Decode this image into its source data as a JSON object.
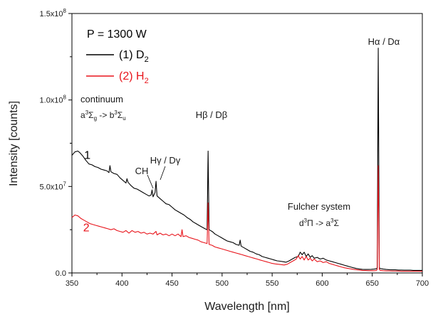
{
  "chart_data": {
    "type": "line",
    "xlabel": "Wavelength [nm]",
    "ylabel": "Intensity [counts]",
    "xlim": [
      350,
      700
    ],
    "ylim": [
      0,
      150000000
    ],
    "x_ticks": [
      350,
      400,
      450,
      500,
      550,
      600,
      650,
      700
    ],
    "x_tick_labels": [
      "350",
      "400",
      "450",
      "500",
      "550",
      "600",
      "650",
      "700"
    ],
    "y_ticks": [
      0,
      50000000,
      100000000,
      150000000
    ],
    "y_tick_labels": [
      {
        "mantissa": "0.0",
        "exp": ""
      },
      {
        "mantissa": "5.0x10",
        "exp": "7"
      },
      {
        "mantissa": "1.0x10",
        "exp": "8"
      },
      {
        "mantissa": "1.5x10",
        "exp": "8"
      }
    ],
    "legend": {
      "placement": "top-left",
      "header": "P = 1300 W",
      "entries": [
        {
          "prefix": "(1) D",
          "sub": "2",
          "color": "#000000"
        },
        {
          "prefix": "(2) H",
          "sub": "2",
          "color": "#e8141b"
        }
      ]
    },
    "series": [
      {
        "name": "(1) D2",
        "color": "#000000",
        "label": "1",
        "label_xy": [
          353,
          66000000
        ],
        "points": [
          [
            350,
            68000000
          ],
          [
            353,
            70000000
          ],
          [
            356,
            70500000
          ],
          [
            358,
            69500000
          ],
          [
            361,
            67500000
          ],
          [
            364,
            65000000
          ],
          [
            367,
            63000000
          ],
          [
            370,
            62500000
          ],
          [
            373,
            61500000
          ],
          [
            376,
            61000000
          ],
          [
            379,
            60000000
          ],
          [
            382,
            59500000
          ],
          [
            385,
            59000000
          ],
          [
            387,
            58000000
          ],
          [
            388,
            62000000
          ],
          [
            389,
            58500000
          ],
          [
            392,
            57500000
          ],
          [
            395,
            57000000
          ],
          [
            398,
            55000000
          ],
          [
            401,
            53500000
          ],
          [
            404,
            52000000
          ],
          [
            405,
            54500000
          ],
          [
            406,
            52500000
          ],
          [
            409,
            50500000
          ],
          [
            412,
            49000000
          ],
          [
            415,
            48500000
          ],
          [
            418,
            47500000
          ],
          [
            421,
            46500000
          ],
          [
            424,
            45500000
          ],
          [
            427,
            44500000
          ],
          [
            429,
            45000000
          ],
          [
            430,
            48000000
          ],
          [
            431,
            44000000
          ],
          [
            433,
            46500000
          ],
          [
            434,
            53000000
          ],
          [
            435,
            44500000
          ],
          [
            438,
            43000000
          ],
          [
            441,
            41500000
          ],
          [
            444,
            40000000
          ],
          [
            447,
            39500000
          ],
          [
            450,
            38000000
          ],
          [
            453,
            36500000
          ],
          [
            456,
            35500000
          ],
          [
            459,
            34500000
          ],
          [
            462,
            33500000
          ],
          [
            465,
            32000000
          ],
          [
            468,
            31000000
          ],
          [
            471,
            29500000
          ],
          [
            474,
            28500000
          ],
          [
            477,
            27500000
          ],
          [
            480,
            26500000
          ],
          [
            483,
            25500000
          ],
          [
            485,
            25000000
          ],
          [
            486,
            70500000
          ],
          [
            487,
            25000000
          ],
          [
            490,
            24000000
          ],
          [
            493,
            22500000
          ],
          [
            496,
            21500000
          ],
          [
            499,
            20500000
          ],
          [
            502,
            19500000
          ],
          [
            505,
            18500000
          ],
          [
            508,
            18000000
          ],
          [
            511,
            17500000
          ],
          [
            514,
            16500000
          ],
          [
            517,
            16000000
          ],
          [
            518,
            19000000
          ],
          [
            519,
            15500000
          ],
          [
            522,
            14500000
          ],
          [
            525,
            13500000
          ],
          [
            528,
            12500000
          ],
          [
            531,
            12000000
          ],
          [
            534,
            11000000
          ],
          [
            537,
            10500000
          ],
          [
            540,
            9500000
          ],
          [
            543,
            9000000
          ],
          [
            546,
            8500000
          ],
          [
            549,
            8000000
          ],
          [
            552,
            7500000
          ],
          [
            555,
            7000000
          ],
          [
            558,
            6800000
          ],
          [
            561,
            6500000
          ],
          [
            564,
            6200000
          ],
          [
            567,
            7000000
          ],
          [
            570,
            8000000
          ],
          [
            573,
            9000000
          ],
          [
            576,
            9500000
          ],
          [
            578,
            12000000
          ],
          [
            580,
            10500000
          ],
          [
            582,
            12000000
          ],
          [
            584,
            9500000
          ],
          [
            586,
            11000000
          ],
          [
            588,
            9000000
          ],
          [
            590,
            10000000
          ],
          [
            592,
            8500000
          ],
          [
            595,
            9000000
          ],
          [
            598,
            8000000
          ],
          [
            601,
            8500000
          ],
          [
            604,
            7500000
          ],
          [
            607,
            7000000
          ],
          [
            610,
            6500000
          ],
          [
            613,
            6000000
          ],
          [
            616,
            5500000
          ],
          [
            619,
            5000000
          ],
          [
            622,
            4500000
          ],
          [
            625,
            4000000
          ],
          [
            628,
            3500000
          ],
          [
            631,
            3000000
          ],
          [
            634,
            2600000
          ],
          [
            637,
            2300000
          ],
          [
            640,
            2100000
          ],
          [
            643,
            2000000
          ],
          [
            646,
            2000000
          ],
          [
            649,
            2100000
          ],
          [
            652,
            2200000
          ],
          [
            654,
            2400000
          ],
          [
            655,
            3000000
          ],
          [
            656,
            130000000
          ],
          [
            657,
            3000000
          ],
          [
            658,
            2500000
          ],
          [
            661,
            2200000
          ],
          [
            664,
            2000000
          ],
          [
            667,
            1900000
          ],
          [
            670,
            1800000
          ],
          [
            673,
            1800000
          ],
          [
            676,
            1700000
          ],
          [
            679,
            1700000
          ],
          [
            682,
            1600000
          ],
          [
            685,
            1600000
          ],
          [
            688,
            1600000
          ],
          [
            691,
            1500000
          ],
          [
            694,
            1500000
          ],
          [
            697,
            1500000
          ],
          [
            700,
            1500000
          ]
        ]
      },
      {
        "name": "(2) H2",
        "color": "#e8141b",
        "label": "2",
        "label_xy": [
          352,
          24000000
        ],
        "points": [
          [
            350,
            32000000
          ],
          [
            353,
            33500000
          ],
          [
            356,
            33000000
          ],
          [
            359,
            31500000
          ],
          [
            362,
            30500000
          ],
          [
            365,
            29500000
          ],
          [
            368,
            28500000
          ],
          [
            371,
            28000000
          ],
          [
            374,
            27500000
          ],
          [
            377,
            27000000
          ],
          [
            380,
            26500000
          ],
          [
            383,
            26000000
          ],
          [
            386,
            25500000
          ],
          [
            389,
            25000000
          ],
          [
            392,
            25500000
          ],
          [
            395,
            24500000
          ],
          [
            398,
            24000000
          ],
          [
            401,
            23500000
          ],
          [
            404,
            24500000
          ],
          [
            407,
            23000000
          ],
          [
            410,
            24500000
          ],
          [
            413,
            23500000
          ],
          [
            416,
            24000000
          ],
          [
            419,
            23000000
          ],
          [
            422,
            23500000
          ],
          [
            425,
            22500000
          ],
          [
            428,
            23000000
          ],
          [
            431,
            22500000
          ],
          [
            434,
            24000000
          ],
          [
            435,
            22000000
          ],
          [
            438,
            23000000
          ],
          [
            441,
            22000000
          ],
          [
            444,
            22500000
          ],
          [
            447,
            21500000
          ],
          [
            450,
            22500000
          ],
          [
            453,
            21500000
          ],
          [
            456,
            22500000
          ],
          [
            459,
            21000000
          ],
          [
            460,
            25000000
          ],
          [
            461,
            21000000
          ],
          [
            464,
            21500000
          ],
          [
            467,
            20500000
          ],
          [
            470,
            20000000
          ],
          [
            473,
            19500000
          ],
          [
            476,
            19000000
          ],
          [
            479,
            18000000
          ],
          [
            482,
            17500000
          ],
          [
            485,
            17000000
          ],
          [
            486,
            40500000
          ],
          [
            487,
            16500000
          ],
          [
            490,
            16000000
          ],
          [
            493,
            15000000
          ],
          [
            496,
            14500000
          ],
          [
            499,
            14000000
          ],
          [
            502,
            13500000
          ],
          [
            505,
            13000000
          ],
          [
            508,
            12500000
          ],
          [
            511,
            12000000
          ],
          [
            514,
            11500000
          ],
          [
            517,
            11000000
          ],
          [
            520,
            10500000
          ],
          [
            523,
            10000000
          ],
          [
            526,
            9500000
          ],
          [
            529,
            9000000
          ],
          [
            532,
            8500000
          ],
          [
            535,
            8000000
          ],
          [
            538,
            7500000
          ],
          [
            541,
            7000000
          ],
          [
            544,
            6500000
          ],
          [
            547,
            6000000
          ],
          [
            550,
            5500000
          ],
          [
            553,
            5200000
          ],
          [
            556,
            5000000
          ],
          [
            559,
            4800000
          ],
          [
            562,
            4600000
          ],
          [
            565,
            5000000
          ],
          [
            568,
            6000000
          ],
          [
            571,
            7000000
          ],
          [
            574,
            8000000
          ],
          [
            576,
            10000000
          ],
          [
            578,
            8000000
          ],
          [
            580,
            9500000
          ],
          [
            582,
            7500000
          ],
          [
            584,
            9500000
          ],
          [
            586,
            7500000
          ],
          [
            588,
            8500000
          ],
          [
            590,
            7000000
          ],
          [
            592,
            8000000
          ],
          [
            595,
            6500000
          ],
          [
            598,
            7000000
          ],
          [
            601,
            6000000
          ],
          [
            604,
            6500000
          ],
          [
            607,
            5500000
          ],
          [
            610,
            5000000
          ],
          [
            613,
            4500000
          ],
          [
            616,
            4000000
          ],
          [
            619,
            3500000
          ],
          [
            622,
            3000000
          ],
          [
            625,
            2700000
          ],
          [
            628,
            2400000
          ],
          [
            631,
            2100000
          ],
          [
            634,
            1900000
          ],
          [
            637,
            1700000
          ],
          [
            640,
            1500000
          ],
          [
            643,
            1400000
          ],
          [
            646,
            1300000
          ],
          [
            649,
            1300000
          ],
          [
            652,
            1300000
          ],
          [
            654,
            1400000
          ],
          [
            655,
            2000000
          ],
          [
            656,
            62000000
          ],
          [
            657,
            2000000
          ],
          [
            658,
            1500000
          ],
          [
            661,
            1300000
          ],
          [
            664,
            1200000
          ],
          [
            667,
            1200000
          ],
          [
            670,
            1100000
          ],
          [
            673,
            1100000
          ],
          [
            676,
            1100000
          ],
          [
            679,
            1000000
          ],
          [
            682,
            1000000
          ],
          [
            685,
            1000000
          ],
          [
            688,
            1000000
          ],
          [
            691,
            1000000
          ],
          [
            694,
            1000000
          ],
          [
            697,
            1000000
          ],
          [
            700,
            1000000
          ]
        ]
      }
    ],
    "annotations": {
      "continuum": {
        "title": "continuum",
        "transition": "a3Σg -> b3Σu"
      },
      "h_gamma": "Hγ / Dγ",
      "ch": "CH",
      "h_beta": "Hβ / Dβ",
      "h_alpha": "Hα / Dα",
      "fulcher": {
        "title": "Fulcher system",
        "transition": "d3Π -> a3Σ"
      }
    }
  }
}
